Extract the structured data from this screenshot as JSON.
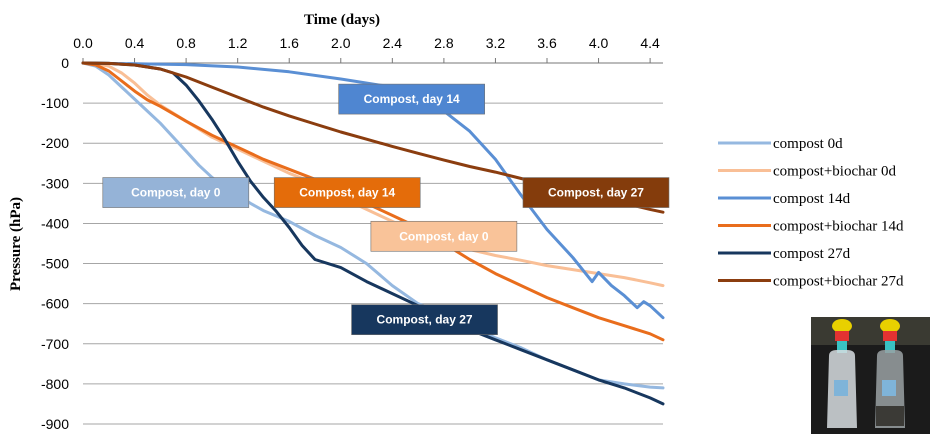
{
  "chart_data": {
    "type": "line",
    "xlabel": "Time (days)",
    "ylabel": "Pressure (hPa)",
    "xlim": [
      0,
      4.5
    ],
    "ylim": [
      -900,
      0
    ],
    "x_ticks": [
      "0.0",
      "0.4",
      "0.8",
      "1.2",
      "1.6",
      "2.0",
      "2.4",
      "2.8",
      "3.2",
      "3.6",
      "4.0",
      "4.4"
    ],
    "y_ticks": [
      "0",
      "-100",
      "-200",
      "-300",
      "-400",
      "-500",
      "-600",
      "-700",
      "-800",
      "-900"
    ],
    "x_axis_position": "top",
    "grid": "horizontal",
    "legend_position": "right",
    "series": [
      {
        "name": "compost 0d",
        "color": "#95b8e0",
        "points": [
          [
            0,
            0
          ],
          [
            0.1,
            -8
          ],
          [
            0.2,
            -30
          ],
          [
            0.3,
            -60
          ],
          [
            0.4,
            -90
          ],
          [
            0.5,
            -120
          ],
          [
            0.6,
            -150
          ],
          [
            0.7,
            -185
          ],
          [
            0.8,
            -220
          ],
          [
            0.9,
            -255
          ],
          [
            1.0,
            -285
          ],
          [
            1.1,
            -310
          ],
          [
            1.2,
            -330
          ],
          [
            1.3,
            -350
          ],
          [
            1.4,
            -368
          ],
          [
            1.6,
            -395
          ],
          [
            1.8,
            -430
          ],
          [
            2.0,
            -460
          ],
          [
            2.2,
            -500
          ],
          [
            2.4,
            -555
          ],
          [
            2.6,
            -600
          ],
          [
            2.8,
            -625
          ],
          [
            3.0,
            -655
          ],
          [
            3.2,
            -685
          ],
          [
            3.4,
            -710
          ],
          [
            3.6,
            -740
          ],
          [
            3.8,
            -765
          ],
          [
            4.0,
            -790
          ],
          [
            4.2,
            -800
          ],
          [
            4.4,
            -808
          ],
          [
            4.5,
            -810
          ]
        ]
      },
      {
        "name": "compost+biochar 0d",
        "color": "#f9bf96",
        "points": [
          [
            0,
            0
          ],
          [
            0.1,
            -2
          ],
          [
            0.2,
            -8
          ],
          [
            0.3,
            -25
          ],
          [
            0.4,
            -50
          ],
          [
            0.5,
            -80
          ],
          [
            0.6,
            -105
          ],
          [
            0.8,
            -145
          ],
          [
            1.0,
            -185
          ],
          [
            1.2,
            -215
          ],
          [
            1.4,
            -245
          ],
          [
            1.6,
            -275
          ],
          [
            1.8,
            -300
          ],
          [
            2.0,
            -335
          ],
          [
            2.2,
            -365
          ],
          [
            2.4,
            -395
          ],
          [
            2.6,
            -425
          ],
          [
            2.8,
            -445
          ],
          [
            3.0,
            -465
          ],
          [
            3.2,
            -480
          ],
          [
            3.4,
            -492
          ],
          [
            3.6,
            -505
          ],
          [
            3.8,
            -515
          ],
          [
            4.0,
            -525
          ],
          [
            4.2,
            -535
          ],
          [
            4.4,
            -548
          ],
          [
            4.5,
            -555
          ]
        ]
      },
      {
        "name": "compost 14d",
        "color": "#5a8fd4",
        "points": [
          [
            0,
            0
          ],
          [
            0.4,
            -2
          ],
          [
            0.8,
            -4
          ],
          [
            1.2,
            -10
          ],
          [
            1.6,
            -22
          ],
          [
            2.0,
            -40
          ],
          [
            2.4,
            -60
          ],
          [
            2.6,
            -78
          ],
          [
            2.8,
            -120
          ],
          [
            3.0,
            -170
          ],
          [
            3.2,
            -240
          ],
          [
            3.4,
            -330
          ],
          [
            3.6,
            -415
          ],
          [
            3.8,
            -485
          ],
          [
            3.95,
            -545
          ],
          [
            4.0,
            -522
          ],
          [
            4.1,
            -555
          ],
          [
            4.2,
            -580
          ],
          [
            4.3,
            -610
          ],
          [
            4.35,
            -595
          ],
          [
            4.4,
            -605
          ],
          [
            4.5,
            -635
          ]
        ]
      },
      {
        "name": "compost+biochar 14d",
        "color": "#e96d1c",
        "points": [
          [
            0,
            0
          ],
          [
            0.1,
            -5
          ],
          [
            0.2,
            -20
          ],
          [
            0.3,
            -45
          ],
          [
            0.4,
            -70
          ],
          [
            0.5,
            -92
          ],
          [
            0.6,
            -108
          ],
          [
            0.8,
            -145
          ],
          [
            1.0,
            -180
          ],
          [
            1.2,
            -210
          ],
          [
            1.4,
            -240
          ],
          [
            1.6,
            -265
          ],
          [
            1.8,
            -290
          ],
          [
            2.0,
            -320
          ],
          [
            2.2,
            -350
          ],
          [
            2.4,
            -380
          ],
          [
            2.6,
            -410
          ],
          [
            2.8,
            -450
          ],
          [
            3.0,
            -490
          ],
          [
            3.2,
            -525
          ],
          [
            3.4,
            -555
          ],
          [
            3.6,
            -585
          ],
          [
            3.8,
            -610
          ],
          [
            4.0,
            -635
          ],
          [
            4.2,
            -655
          ],
          [
            4.4,
            -675
          ],
          [
            4.5,
            -690
          ]
        ]
      },
      {
        "name": "compost 27d",
        "color": "#17375e",
        "points": [
          [
            0,
            0
          ],
          [
            0.2,
            -1
          ],
          [
            0.4,
            -5
          ],
          [
            0.6,
            -15
          ],
          [
            0.7,
            -25
          ],
          [
            0.8,
            -55
          ],
          [
            0.9,
            -95
          ],
          [
            1.0,
            -140
          ],
          [
            1.1,
            -190
          ],
          [
            1.2,
            -245
          ],
          [
            1.3,
            -295
          ],
          [
            1.4,
            -335
          ],
          [
            1.5,
            -370
          ],
          [
            1.6,
            -410
          ],
          [
            1.7,
            -455
          ],
          [
            1.8,
            -490
          ],
          [
            2.0,
            -510
          ],
          [
            2.2,
            -545
          ],
          [
            2.4,
            -575
          ],
          [
            2.6,
            -605
          ],
          [
            2.8,
            -635
          ],
          [
            3.0,
            -665
          ],
          [
            3.2,
            -690
          ],
          [
            3.4,
            -715
          ],
          [
            3.6,
            -740
          ],
          [
            3.8,
            -765
          ],
          [
            4.0,
            -790
          ],
          [
            4.2,
            -810
          ],
          [
            4.4,
            -835
          ],
          [
            4.5,
            -850
          ]
        ]
      },
      {
        "name": "compost+biochar 27d",
        "color": "#8b3d0f",
        "points": [
          [
            0,
            0
          ],
          [
            0.2,
            -1
          ],
          [
            0.4,
            -5
          ],
          [
            0.6,
            -15
          ],
          [
            0.8,
            -35
          ],
          [
            1.0,
            -60
          ],
          [
            1.2,
            -85
          ],
          [
            1.4,
            -110
          ],
          [
            1.6,
            -132
          ],
          [
            1.8,
            -152
          ],
          [
            2.0,
            -172
          ],
          [
            2.2,
            -190
          ],
          [
            2.4,
            -208
          ],
          [
            2.6,
            -225
          ],
          [
            2.8,
            -242
          ],
          [
            3.0,
            -258
          ],
          [
            3.2,
            -272
          ],
          [
            3.4,
            -288
          ],
          [
            3.6,
            -305
          ],
          [
            3.8,
            -318
          ],
          [
            4.0,
            -335
          ],
          [
            4.2,
            -350
          ],
          [
            4.4,
            -365
          ],
          [
            4.5,
            -372
          ]
        ]
      }
    ],
    "annotations": [
      {
        "text": "Compost, day 14",
        "color": "#4f86d1",
        "x": 2.55,
        "y": -90
      },
      {
        "text": "Compost, day 0",
        "color": "#95b3d7",
        "x": 0.72,
        "y": -323
      },
      {
        "text": "Compost, day 14",
        "color": "#e46c0a",
        "x": 2.05,
        "y": -323
      },
      {
        "text": "Compost, day 27",
        "color": "#843c0c",
        "x": 3.98,
        "y": -323
      },
      {
        "text": "Compost, day 0",
        "color": "#f9c399",
        "x": 2.8,
        "y": -432
      },
      {
        "text": "Compost, day 27",
        "color": "#17375e",
        "x": 2.65,
        "y": -640
      }
    ]
  }
}
